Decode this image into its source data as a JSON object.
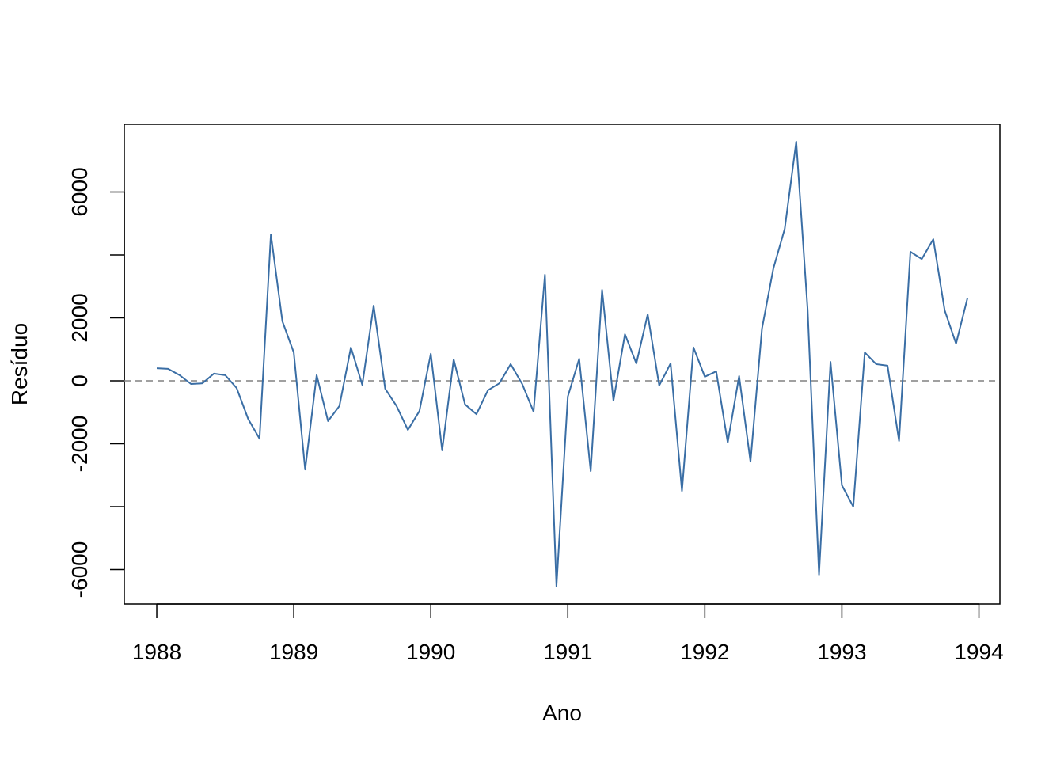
{
  "chart_data": {
    "type": "line",
    "xlabel": "Ano",
    "ylabel": "Resíduo",
    "x": [
      1988,
      1988.083,
      1988.167,
      1988.25,
      1988.333,
      1988.417,
      1988.5,
      1988.583,
      1988.667,
      1988.75,
      1988.833,
      1988.917,
      1989,
      1989.083,
      1989.167,
      1989.25,
      1989.333,
      1989.417,
      1989.5,
      1989.583,
      1989.667,
      1989.75,
      1989.833,
      1989.917,
      1990,
      1990.083,
      1990.167,
      1990.25,
      1990.333,
      1990.417,
      1990.5,
      1990.583,
      1990.667,
      1990.75,
      1990.833,
      1990.917,
      1991,
      1991.083,
      1991.167,
      1991.25,
      1991.333,
      1991.417,
      1991.5,
      1991.583,
      1991.667,
      1991.75,
      1991.833,
      1991.917,
      1992,
      1992.083,
      1992.167,
      1992.25,
      1992.333,
      1992.417,
      1992.5,
      1992.583,
      1992.667,
      1992.75,
      1992.833,
      1992.917,
      1993,
      1993.083,
      1993.167,
      1993.25,
      1993.333,
      1993.417,
      1993.5,
      1993.583,
      1993.667,
      1993.75,
      1993.833,
      1993.917
    ],
    "series": [
      {
        "color": "#3a6ea5",
        "values": [
          400,
          380,
          180,
          -100,
          -80,
          230,
          180,
          -230,
          -1210,
          -1840,
          4650,
          1890,
          900,
          -2820,
          180,
          -1280,
          -800,
          1060,
          -130,
          2390,
          -250,
          -800,
          -1560,
          -960,
          860,
          -2210,
          680,
          -750,
          -1060,
          -300,
          -80,
          530,
          -100,
          -980,
          3370,
          -6540,
          -500,
          700,
          -2870,
          2890,
          -630,
          1480,
          550,
          2110,
          -150,
          550,
          -3500,
          1060,
          130,
          300,
          -1960,
          150,
          -2570,
          1660,
          3570,
          4830,
          7600,
          2260,
          -6160,
          600,
          -3320,
          -4000,
          900,
          530,
          480,
          -1910,
          4100,
          3870,
          4500,
          2240,
          1180,
          2640
        ]
      }
    ],
    "reference_line": {
      "value": 0,
      "color": "#808080",
      "style": "dashed"
    },
    "xlim": [
      1987.763,
      1994.153
    ],
    "xticks": [
      1988,
      1989,
      1990,
      1991,
      1992,
      1993,
      1994
    ],
    "ylim": [
      -7094,
      8151
    ],
    "yticks": [
      -6000,
      -4000,
      -2000,
      0,
      2000,
      4000,
      6000
    ]
  }
}
